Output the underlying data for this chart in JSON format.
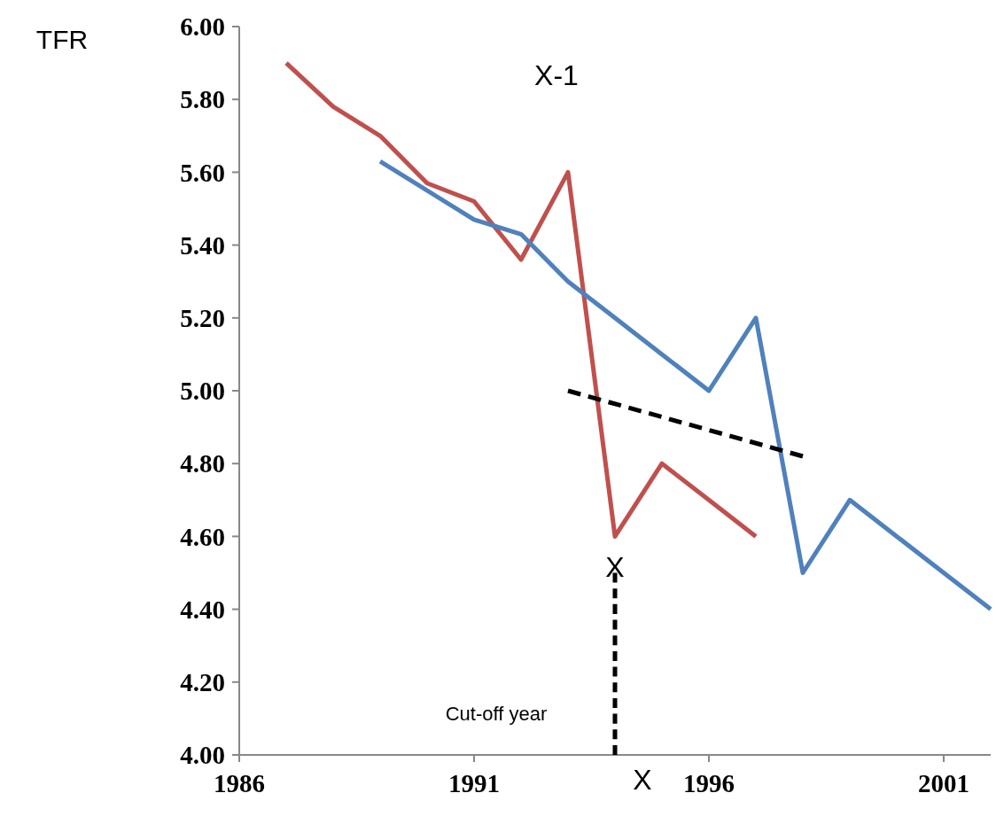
{
  "chart_data": {
    "type": "line",
    "ylabel": "TFR",
    "x": [
      1987,
      1988,
      1989,
      1990,
      1991,
      1992,
      1993,
      1994,
      1995,
      1996,
      1997
    ],
    "series": [
      {
        "color": "#c0504d",
        "values": [
          5.9,
          5.78,
          5.7,
          5.57,
          5.52,
          5.36,
          5.6,
          4.6,
          4.8,
          4.7,
          4.6
        ]
      },
      {
        "color": "#4f81bd",
        "x": [
          1989,
          1991,
          1992,
          1993,
          1994,
          1995,
          1996,
          1997,
          1998,
          1999,
          2000,
          2001,
          2002
        ],
        "values": [
          5.63,
          5.47,
          5.43,
          5.3,
          5.2,
          5.1,
          5.0,
          5.2,
          4.5,
          4.7,
          4.6,
          4.5,
          4.4
        ]
      },
      {
        "color": "#000000",
        "line_style": "dashed",
        "x": [
          1993,
          1998
        ],
        "values": [
          5.0,
          4.82
        ]
      },
      {
        "color": "#000000",
        "line_style": "dashed",
        "x": [
          1994,
          1994
        ],
        "values": [
          4.5,
          4.0
        ]
      }
    ],
    "xlim": [
      1986,
      2002
    ],
    "xticks": [
      1986,
      1991,
      1996,
      2001
    ],
    "ylim": [
      4,
      6
    ],
    "yticks": [
      {
        "value": 4,
        "label": "4.00"
      },
      {
        "value": 4.2,
        "label": "4.20"
      },
      {
        "value": 4.4,
        "label": "4.40"
      },
      {
        "value": 4.6,
        "label": "4.60"
      },
      {
        "value": 4.8,
        "label": "4.80"
      },
      {
        "value": 5,
        "label": "5.00"
      },
      {
        "value": 5.2,
        "label": "5.20"
      },
      {
        "value": 5.4,
        "label": "5.40"
      },
      {
        "value": 5.6,
        "label": "5.60"
      },
      {
        "value": 5.8,
        "label": "5.80"
      },
      {
        "value": 6,
        "label": "6.00"
      }
    ],
    "annotations": [
      "X-1",
      "X",
      "X",
      "Cut-off year"
    ],
    "grid": false,
    "marker": "none",
    "line_style": "solid"
  }
}
